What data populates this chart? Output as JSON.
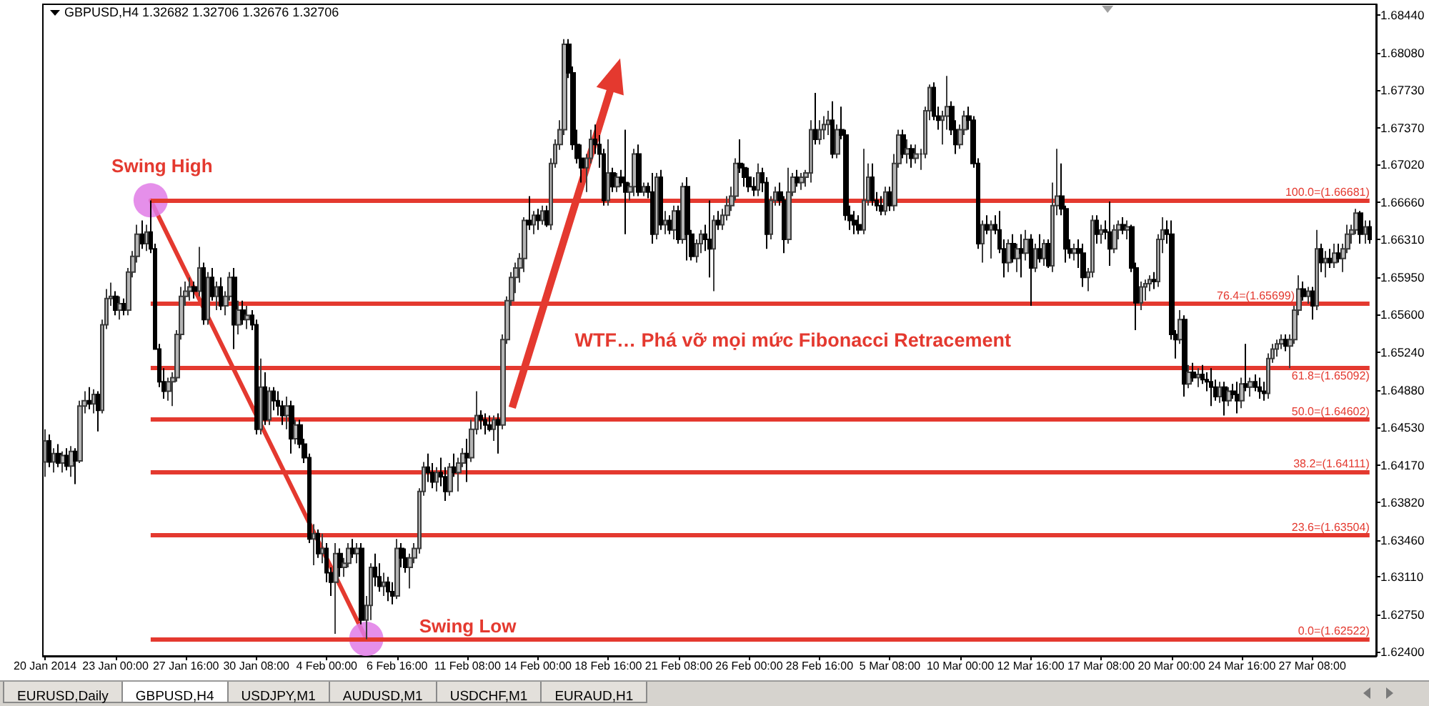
{
  "chart_data": {
    "type": "candlestick",
    "title": "GBPUSD,H4 1.32682 1.32706 1.32676 1.32706",
    "categories": [
      "20 Jan 2014",
      null,
      null,
      null,
      null,
      null,
      null,
      null,
      null,
      null,
      null,
      null,
      null,
      null,
      null,
      null,
      "23 Jan 00:00",
      null,
      null,
      null,
      null,
      null,
      null,
      null,
      null,
      null,
      null,
      null,
      null,
      null,
      null,
      null,
      "27 Jan 16:00",
      null,
      null,
      null,
      null,
      null,
      null,
      null,
      null,
      null,
      null,
      null,
      null,
      null,
      null,
      null,
      "30 Jan 08:00",
      null,
      null,
      null,
      null,
      null,
      null,
      null,
      null,
      null,
      null,
      null,
      null,
      null,
      null,
      null,
      "4 Feb 00:00",
      null,
      null,
      null,
      null,
      null,
      null,
      null,
      null,
      null,
      null,
      null,
      null,
      null,
      null,
      null,
      "6 Feb 16:00",
      null,
      null,
      null,
      null,
      null,
      null,
      null,
      null,
      null,
      null,
      null,
      null,
      null,
      null,
      null,
      "11 Feb 08:00",
      null,
      null,
      null,
      null,
      null,
      null,
      null,
      null,
      null,
      null,
      null,
      null,
      null,
      null,
      null,
      "14 Feb 00:00",
      null,
      null,
      null,
      null,
      null,
      null,
      null,
      null,
      null,
      null,
      null,
      null,
      null,
      null,
      null,
      "18 Feb 16:00",
      null,
      null,
      null,
      null,
      null,
      null,
      null,
      null,
      null,
      null,
      null,
      null,
      null,
      null,
      null,
      "21 Feb 08:00",
      null,
      null,
      null,
      null,
      null,
      null,
      null,
      null,
      null,
      null,
      null,
      null,
      null,
      null,
      null,
      "26 Feb 00:00",
      null,
      null,
      null,
      null,
      null,
      null,
      null,
      null,
      null,
      null,
      null,
      null,
      null,
      null,
      null,
      "28 Feb 16:00",
      null,
      null,
      null,
      null,
      null,
      null,
      null,
      null,
      null,
      null,
      null,
      null,
      null,
      null,
      null,
      "5 Mar 08:00",
      null,
      null,
      null,
      null,
      null,
      null,
      null,
      null,
      null,
      null,
      null,
      null,
      null,
      null,
      null,
      "10 Mar 00:00",
      null,
      null,
      null,
      null,
      null,
      null,
      null,
      null,
      null,
      null,
      null,
      null,
      null,
      null,
      null,
      "12 Mar 16:00",
      null,
      null,
      null,
      null,
      null,
      null,
      null,
      null,
      null,
      null,
      null,
      null,
      null,
      null,
      null,
      "17 Mar 08:00",
      null,
      null,
      null,
      null,
      null,
      null,
      null,
      null,
      null,
      null,
      null,
      null,
      null,
      null,
      null,
      "20 Mar 00:00",
      null,
      null,
      null,
      null,
      null,
      null,
      null,
      null,
      null,
      null,
      null,
      null,
      null,
      null,
      null,
      "24 Mar 16:00",
      null,
      null,
      null,
      null,
      null,
      null,
      null,
      null,
      null,
      null,
      null,
      null,
      null,
      null,
      null,
      "27 Mar 08:00",
      null,
      null,
      null,
      null,
      null,
      null,
      null,
      null,
      null,
      null,
      null,
      null,
      null
    ],
    "ohlc": [
      [
        1.642,
        1.6451,
        1.6406,
        1.644
      ],
      [
        1.644,
        1.6446,
        1.6415,
        1.642
      ],
      [
        1.642,
        1.6433,
        1.641,
        1.6428
      ],
      [
        1.6428,
        1.6437,
        1.6415,
        1.6419
      ],
      [
        1.6419,
        1.643,
        1.641,
        1.6426
      ],
      [
        1.6426,
        1.6433,
        1.6412,
        1.6416
      ],
      [
        1.6416,
        1.6435,
        1.6406,
        1.643
      ],
      [
        1.643,
        1.6433,
        1.6399,
        1.6421
      ],
      [
        1.6421,
        1.6478,
        1.6419,
        1.6473
      ],
      [
        1.6473,
        1.6487,
        1.6466,
        1.6478
      ],
      [
        1.6478,
        1.6491,
        1.647,
        1.6475
      ],
      [
        1.6475,
        1.6489,
        1.6466,
        1.6484
      ],
      [
        1.6484,
        1.6487,
        1.6449,
        1.6469
      ],
      [
        1.6469,
        1.6555,
        1.6466,
        1.655
      ],
      [
        1.655,
        1.6584,
        1.6546,
        1.6575
      ],
      [
        1.6575,
        1.659,
        1.6568,
        1.6577
      ],
      [
        1.6577,
        1.6582,
        1.6559,
        1.6564
      ],
      [
        1.6564,
        1.6577,
        1.6555,
        1.657
      ],
      [
        1.657,
        1.6575,
        1.6559,
        1.6564
      ],
      [
        1.6564,
        1.6604,
        1.6559,
        1.66
      ],
      [
        1.66,
        1.662,
        1.6595,
        1.6615
      ],
      [
        1.6615,
        1.6645,
        1.6609,
        1.6636
      ],
      [
        1.6636,
        1.6649,
        1.6622,
        1.6627
      ],
      [
        1.6627,
        1.6645,
        1.662,
        1.6638
      ],
      [
        1.6638,
        1.6668,
        1.6618,
        1.6622
      ],
      [
        1.6622,
        1.6627,
        1.6527,
        1.6527
      ],
      [
        1.6527,
        1.6532,
        1.6491,
        1.6496
      ],
      [
        1.6496,
        1.6509,
        1.648,
        1.6487
      ],
      [
        1.6487,
        1.65,
        1.6478,
        1.6496
      ],
      [
        1.6496,
        1.6505,
        1.6473,
        1.65
      ],
      [
        1.65,
        1.6545,
        1.6496,
        1.6541
      ],
      [
        1.6541,
        1.6586,
        1.6536,
        1.6577
      ],
      [
        1.6577,
        1.6591,
        1.6568,
        1.6582
      ],
      [
        1.6582,
        1.6595,
        1.6573,
        1.6586
      ],
      [
        1.6586,
        1.6591,
        1.6575,
        1.6582
      ],
      [
        1.6582,
        1.6624,
        1.6577,
        1.6604
      ],
      [
        1.6604,
        1.6609,
        1.655,
        1.6555
      ],
      [
        1.6555,
        1.66,
        1.655,
        1.6595
      ],
      [
        1.6595,
        1.6604,
        1.6573,
        1.6577
      ],
      [
        1.6577,
        1.6591,
        1.6564,
        1.6586
      ],
      [
        1.6586,
        1.6595,
        1.6564,
        1.6568
      ],
      [
        1.6568,
        1.6582,
        1.6559,
        1.6577
      ],
      [
        1.6577,
        1.66,
        1.6573,
        1.6595
      ],
      [
        1.6595,
        1.6604,
        1.6527,
        1.655
      ],
      [
        1.655,
        1.6573,
        1.6541,
        1.6564
      ],
      [
        1.6564,
        1.6573,
        1.655,
        1.6555
      ],
      [
        1.6555,
        1.6568,
        1.6546,
        1.6559
      ],
      [
        1.6559,
        1.6564,
        1.6545,
        1.655
      ],
      [
        1.655,
        1.6555,
        1.6446,
        1.6451
      ],
      [
        1.6451,
        1.6518,
        1.6446,
        1.6491
      ],
      [
        1.6491,
        1.6505,
        1.6455,
        1.646
      ],
      [
        1.646,
        1.6491,
        1.6455,
        1.6487
      ],
      [
        1.6487,
        1.6491,
        1.6469,
        1.6478
      ],
      [
        1.6478,
        1.6487,
        1.6464,
        1.6473
      ],
      [
        1.6473,
        1.6478,
        1.6455,
        1.6464
      ],
      [
        1.6464,
        1.6482,
        1.6451,
        1.6473
      ],
      [
        1.6473,
        1.6478,
        1.6428,
        1.6442
      ],
      [
        1.6442,
        1.646,
        1.6437,
        1.6455
      ],
      [
        1.6455,
        1.646,
        1.6433,
        1.6437
      ],
      [
        1.6437,
        1.6442,
        1.6419,
        1.6424
      ],
      [
        1.6424,
        1.6428,
        1.6343,
        1.6347
      ],
      [
        1.6347,
        1.6361,
        1.6322,
        1.6352
      ],
      [
        1.6352,
        1.6356,
        1.6329,
        1.6333
      ],
      [
        1.6333,
        1.6352,
        1.6324,
        1.6338
      ],
      [
        1.6338,
        1.6343,
        1.6306,
        1.6315
      ],
      [
        1.6315,
        1.632,
        1.6293,
        1.6306
      ],
      [
        1.6306,
        1.6343,
        1.6257,
        1.6333
      ],
      [
        1.6333,
        1.6338,
        1.6311,
        1.632
      ],
      [
        1.632,
        1.6329,
        1.6311,
        1.6324
      ],
      [
        1.6324,
        1.6343,
        1.632,
        1.6338
      ],
      [
        1.6338,
        1.6347,
        1.6329,
        1.6333
      ],
      [
        1.6333,
        1.6343,
        1.6324,
        1.6338
      ],
      [
        1.6338,
        1.6343,
        1.6266,
        1.627
      ],
      [
        1.627,
        1.6293,
        1.6252,
        1.6284
      ],
      [
        1.6284,
        1.6324,
        1.627,
        1.632
      ],
      [
        1.632,
        1.6333,
        1.6302,
        1.6311
      ],
      [
        1.6311,
        1.6324,
        1.6297,
        1.6302
      ],
      [
        1.6302,
        1.6315,
        1.6293,
        1.6306
      ],
      [
        1.6306,
        1.6311,
        1.6288,
        1.6297
      ],
      [
        1.6297,
        1.6306,
        1.6285,
        1.6293
      ],
      [
        1.6293,
        1.6347,
        1.629,
        1.6338
      ],
      [
        1.6338,
        1.6343,
        1.632,
        1.6329
      ],
      [
        1.6329,
        1.6338,
        1.6315,
        1.632
      ],
      [
        1.632,
        1.6333,
        1.63,
        1.6329
      ],
      [
        1.6329,
        1.6343,
        1.6324,
        1.6338
      ],
      [
        1.6338,
        1.6395,
        1.6333,
        1.6392
      ],
      [
        1.6392,
        1.642,
        1.6388,
        1.6415
      ],
      [
        1.6415,
        1.6428,
        1.6401,
        1.641
      ],
      [
        1.641,
        1.6419,
        1.6395,
        1.6401
      ],
      [
        1.6401,
        1.6415,
        1.6392,
        1.641
      ],
      [
        1.641,
        1.6424,
        1.6397,
        1.6406
      ],
      [
        1.6406,
        1.6415,
        1.6383,
        1.6392
      ],
      [
        1.6392,
        1.6419,
        1.6388,
        1.6415
      ],
      [
        1.6415,
        1.6428,
        1.6406,
        1.641
      ],
      [
        1.641,
        1.6424,
        1.6392,
        1.6419
      ],
      [
        1.6419,
        1.6433,
        1.6415,
        1.6428
      ],
      [
        1.6428,
        1.6442,
        1.6401,
        1.6424
      ],
      [
        1.6424,
        1.646,
        1.642,
        1.6451
      ],
      [
        1.6451,
        1.6487,
        1.6446,
        1.6464
      ],
      [
        1.6464,
        1.6469,
        1.6451,
        1.646
      ],
      [
        1.646,
        1.6466,
        1.6446,
        1.6455
      ],
      [
        1.6455,
        1.6464,
        1.6449,
        1.6451
      ],
      [
        1.6451,
        1.6464,
        1.644,
        1.646
      ],
      [
        1.646,
        1.6466,
        1.6428,
        1.6455
      ],
      [
        1.6455,
        1.6541,
        1.6451,
        1.6536
      ],
      [
        1.6536,
        1.6577,
        1.6532,
        1.6573
      ],
      [
        1.6573,
        1.66,
        1.6568,
        1.6595
      ],
      [
        1.6595,
        1.6609,
        1.658,
        1.6604
      ],
      [
        1.6604,
        1.6618,
        1.659,
        1.6613
      ],
      [
        1.6613,
        1.6652,
        1.66,
        1.6649
      ],
      [
        1.6649,
        1.6672,
        1.664,
        1.6645
      ],
      [
        1.6645,
        1.6658,
        1.6636,
        1.6654
      ],
      [
        1.6654,
        1.666,
        1.664,
        1.6649
      ],
      [
        1.6649,
        1.6663,
        1.6645,
        1.6658
      ],
      [
        1.6658,
        1.6663,
        1.6643,
        1.6645
      ],
      [
        1.6645,
        1.6708,
        1.664,
        1.6703
      ],
      [
        1.6703,
        1.6726,
        1.6699,
        1.6721
      ],
      [
        1.6721,
        1.6744,
        1.6716,
        1.6735
      ],
      [
        1.6735,
        1.6821,
        1.673,
        1.6816
      ],
      [
        1.6816,
        1.6821,
        1.6784,
        1.6789
      ],
      [
        1.6789,
        1.6795,
        1.6716,
        1.6721
      ],
      [
        1.6721,
        1.6735,
        1.6703,
        1.6708
      ],
      [
        1.6708,
        1.6721,
        1.6685,
        1.6699
      ],
      [
        1.6699,
        1.6712,
        1.6676,
        1.6708
      ],
      [
        1.6708,
        1.6735,
        1.6703,
        1.6726
      ],
      [
        1.6726,
        1.674,
        1.6712,
        1.6721
      ],
      [
        1.6721,
        1.673,
        1.6699,
        1.6712
      ],
      [
        1.6712,
        1.6717,
        1.6663,
        1.6668
      ],
      [
        1.6668,
        1.6726,
        1.6663,
        1.6694
      ],
      [
        1.6694,
        1.6699,
        1.6676,
        1.6681
      ],
      [
        1.6681,
        1.6694,
        1.6676,
        1.669
      ],
      [
        1.669,
        1.6697,
        1.6681,
        1.6685
      ],
      [
        1.6685,
        1.6735,
        1.6636,
        1.6676
      ],
      [
        1.6676,
        1.6685,
        1.6668,
        1.6681
      ],
      [
        1.6681,
        1.6717,
        1.6672,
        1.6712
      ],
      [
        1.6712,
        1.6721,
        1.6672,
        1.6676
      ],
      [
        1.6676,
        1.6685,
        1.6672,
        1.6681
      ],
      [
        1.6681,
        1.6685,
        1.667,
        1.6676
      ],
      [
        1.6676,
        1.6694,
        1.6627,
        1.6636
      ],
      [
        1.6636,
        1.6694,
        1.6631,
        1.669
      ],
      [
        1.669,
        1.6697,
        1.664,
        1.6645
      ],
      [
        1.6645,
        1.6658,
        1.6636,
        1.6649
      ],
      [
        1.6649,
        1.6654,
        1.6636,
        1.664
      ],
      [
        1.664,
        1.6663,
        1.6631,
        1.6658
      ],
      [
        1.6658,
        1.6663,
        1.6627,
        1.6631
      ],
      [
        1.6631,
        1.6685,
        1.6627,
        1.6681
      ],
      [
        1.6681,
        1.669,
        1.6611,
        1.6636
      ],
      [
        1.6636,
        1.664,
        1.6611,
        1.6615
      ],
      [
        1.6615,
        1.6631,
        1.6609,
        1.6627
      ],
      [
        1.6627,
        1.664,
        1.6618,
        1.6636
      ],
      [
        1.6636,
        1.6645,
        1.662,
        1.6631
      ],
      [
        1.6631,
        1.6668,
        1.6595,
        1.6622
      ],
      [
        1.6622,
        1.6654,
        1.6582,
        1.6649
      ],
      [
        1.6649,
        1.6658,
        1.664,
        1.6645
      ],
      [
        1.6645,
        1.666,
        1.664,
        1.6654
      ],
      [
        1.6654,
        1.6672,
        1.6649,
        1.6663
      ],
      [
        1.6663,
        1.6681,
        1.6658,
        1.6672
      ],
      [
        1.6672,
        1.6708,
        1.6668,
        1.6703
      ],
      [
        1.6703,
        1.6726,
        1.6694,
        1.6699
      ],
      [
        1.6699,
        1.6703,
        1.6681,
        1.669
      ],
      [
        1.669,
        1.6699,
        1.6676,
        1.6681
      ],
      [
        1.6681,
        1.669,
        1.6672,
        1.6678
      ],
      [
        1.6678,
        1.6703,
        1.6672,
        1.6694
      ],
      [
        1.6694,
        1.6699,
        1.6676,
        1.6685
      ],
      [
        1.6685,
        1.669,
        1.6622,
        1.6636
      ],
      [
        1.6636,
        1.6672,
        1.6631,
        1.6668
      ],
      [
        1.6668,
        1.6681,
        1.6663,
        1.6676
      ],
      [
        1.6676,
        1.6685,
        1.6663,
        1.6668
      ],
      [
        1.6668,
        1.6672,
        1.6618,
        1.6631
      ],
      [
        1.6631,
        1.6699,
        1.6627,
        1.6676
      ],
      [
        1.6676,
        1.6694,
        1.6672,
        1.669
      ],
      [
        1.669,
        1.6697,
        1.6681,
        1.6685
      ],
      [
        1.6685,
        1.6694,
        1.6678,
        1.669
      ],
      [
        1.669,
        1.6697,
        1.6681,
        1.6694
      ],
      [
        1.6694,
        1.6744,
        1.6685,
        1.6735
      ],
      [
        1.6735,
        1.677,
        1.6721,
        1.6726
      ],
      [
        1.6726,
        1.6744,
        1.6721,
        1.6735
      ],
      [
        1.6735,
        1.6748,
        1.6726,
        1.674
      ],
      [
        1.674,
        1.6753,
        1.673,
        1.6744
      ],
      [
        1.6744,
        1.6762,
        1.6708,
        1.6712
      ],
      [
        1.6712,
        1.674,
        1.6708,
        1.6735
      ],
      [
        1.6735,
        1.6757,
        1.6726,
        1.673
      ],
      [
        1.673,
        1.6735,
        1.6649,
        1.6654
      ],
      [
        1.6654,
        1.6663,
        1.664,
        1.6649
      ],
      [
        1.6649,
        1.6658,
        1.6636,
        1.6645
      ],
      [
        1.6645,
        1.6654,
        1.6636,
        1.664
      ],
      [
        1.664,
        1.6717,
        1.6636,
        1.6668
      ],
      [
        1.6668,
        1.6703,
        1.6663,
        1.669
      ],
      [
        1.669,
        1.6703,
        1.6663,
        1.6668
      ],
      [
        1.6668,
        1.6676,
        1.6658,
        1.6663
      ],
      [
        1.6663,
        1.6672,
        1.6654,
        1.6658
      ],
      [
        1.6658,
        1.6681,
        1.6654,
        1.6676
      ],
      [
        1.6676,
        1.6681,
        1.6658,
        1.6663
      ],
      [
        1.6663,
        1.6712,
        1.6658,
        1.6703
      ],
      [
        1.6703,
        1.6735,
        1.6699,
        1.673
      ],
      [
        1.673,
        1.6735,
        1.6708,
        1.6712
      ],
      [
        1.6712,
        1.6726,
        1.6703,
        1.6717
      ],
      [
        1.6717,
        1.6721,
        1.6699,
        1.6708
      ],
      [
        1.6708,
        1.6721,
        1.6703,
        1.6712
      ],
      [
        1.6712,
        1.6717,
        1.6697,
        1.6712
      ],
      [
        1.6712,
        1.6757,
        1.6708,
        1.6753
      ],
      [
        1.6753,
        1.6778,
        1.6744,
        1.6775
      ],
      [
        1.6775,
        1.678,
        1.6744,
        1.6748
      ],
      [
        1.6748,
        1.6757,
        1.6735,
        1.6744
      ],
      [
        1.6744,
        1.6753,
        1.6721,
        1.6748
      ],
      [
        1.6748,
        1.6786,
        1.6735,
        1.6757
      ],
      [
        1.6757,
        1.6762,
        1.673,
        1.6735
      ],
      [
        1.6735,
        1.6744,
        1.6712,
        1.6721
      ],
      [
        1.6721,
        1.674,
        1.6717,
        1.6735
      ],
      [
        1.6735,
        1.6753,
        1.673,
        1.6748
      ],
      [
        1.6748,
        1.6757,
        1.6735,
        1.6744
      ],
      [
        1.6744,
        1.6748,
        1.6699,
        1.6703
      ],
      [
        1.6703,
        1.6708,
        1.6622,
        1.6627
      ],
      [
        1.6627,
        1.6649,
        1.6609,
        1.6645
      ],
      [
        1.6645,
        1.6654,
        1.6636,
        1.664
      ],
      [
        1.664,
        1.6649,
        1.6613,
        1.6645
      ],
      [
        1.6645,
        1.6654,
        1.6636,
        1.664
      ],
      [
        1.664,
        1.6658,
        1.6618,
        1.6622
      ],
      [
        1.6622,
        1.6631,
        1.6595,
        1.6609
      ],
      [
        1.6609,
        1.6631,
        1.66,
        1.6627
      ],
      [
        1.6627,
        1.6636,
        1.6609,
        1.6613
      ],
      [
        1.6613,
        1.6627,
        1.66,
        1.6622
      ],
      [
        1.6622,
        1.6636,
        1.6595,
        1.6618
      ],
      [
        1.6618,
        1.664,
        1.6611,
        1.6631
      ],
      [
        1.6631,
        1.6636,
        1.6568,
        1.6604
      ],
      [
        1.6604,
        1.6627,
        1.66,
        1.6622
      ],
      [
        1.6622,
        1.6636,
        1.6609,
        1.6613
      ],
      [
        1.6613,
        1.6631,
        1.6606,
        1.6627
      ],
      [
        1.6627,
        1.6631,
        1.6604,
        1.6606
      ],
      [
        1.6606,
        1.6685,
        1.66,
        1.6663
      ],
      [
        1.6663,
        1.6717,
        1.6654,
        1.6672
      ],
      [
        1.6672,
        1.6703,
        1.6654,
        1.666
      ],
      [
        1.666,
        1.6663,
        1.6609,
        1.6622
      ],
      [
        1.6622,
        1.6631,
        1.6613,
        1.6618
      ],
      [
        1.6618,
        1.6627,
        1.6611,
        1.6622
      ],
      [
        1.6622,
        1.6631,
        1.6604,
        1.6618
      ],
      [
        1.6618,
        1.6627,
        1.6586,
        1.6595
      ],
      [
        1.6595,
        1.6604,
        1.6582,
        1.66
      ],
      [
        1.66,
        1.6654,
        1.6595,
        1.6649
      ],
      [
        1.6649,
        1.6654,
        1.6627,
        1.6636
      ],
      [
        1.6636,
        1.6645,
        1.6627,
        1.664
      ],
      [
        1.664,
        1.6649,
        1.6631,
        1.6638
      ],
      [
        1.6638,
        1.6667,
        1.6606,
        1.6622
      ],
      [
        1.6622,
        1.6645,
        1.6618,
        1.664
      ],
      [
        1.664,
        1.6649,
        1.6631,
        1.6645
      ],
      [
        1.6645,
        1.6652,
        1.6636,
        1.664
      ],
      [
        1.664,
        1.6649,
        1.6631,
        1.6643
      ],
      [
        1.6643,
        1.6645,
        1.66,
        1.6604
      ],
      [
        1.6604,
        1.6609,
        1.6545,
        1.6571
      ],
      [
        1.6571,
        1.6591,
        1.6564,
        1.6586
      ],
      [
        1.6586,
        1.6593,
        1.6573,
        1.6589
      ],
      [
        1.6589,
        1.6597,
        1.6582,
        1.6593
      ],
      [
        1.6593,
        1.66,
        1.6584,
        1.6591
      ],
      [
        1.6591,
        1.6636,
        1.6586,
        1.6631
      ],
      [
        1.6631,
        1.6652,
        1.6618,
        1.664
      ],
      [
        1.664,
        1.6649,
        1.6627,
        1.6636
      ],
      [
        1.6636,
        1.6649,
        1.6536,
        1.6541
      ],
      [
        1.6541,
        1.6545,
        1.6518,
        1.6536
      ],
      [
        1.6536,
        1.6564,
        1.6532,
        1.6555
      ],
      [
        1.6555,
        1.6559,
        1.6482,
        1.6494
      ],
      [
        1.6494,
        1.6512,
        1.649,
        1.6505
      ],
      [
        1.6505,
        1.6514,
        1.6496,
        1.65
      ],
      [
        1.65,
        1.6509,
        1.6491,
        1.6503
      ],
      [
        1.6503,
        1.6512,
        1.6494,
        1.6498
      ],
      [
        1.6498,
        1.6505,
        1.6487,
        1.6496
      ],
      [
        1.6496,
        1.6509,
        1.6473,
        1.6491
      ],
      [
        1.6491,
        1.6498,
        1.6478,
        1.6482
      ],
      [
        1.6482,
        1.6496,
        1.6476,
        1.6491
      ],
      [
        1.6491,
        1.6496,
        1.6464,
        1.6478
      ],
      [
        1.6478,
        1.6491,
        1.6473,
        1.6487
      ],
      [
        1.6487,
        1.6494,
        1.648,
        1.6484
      ],
      [
        1.6484,
        1.6496,
        1.6466,
        1.6478
      ],
      [
        1.6478,
        1.65,
        1.6471,
        1.6494
      ],
      [
        1.6494,
        1.6532,
        1.6487,
        1.6491
      ],
      [
        1.6491,
        1.65,
        1.6482,
        1.6496
      ],
      [
        1.6496,
        1.6503,
        1.6487,
        1.6491
      ],
      [
        1.6491,
        1.65,
        1.648,
        1.6487
      ],
      [
        1.6487,
        1.6496,
        1.6478,
        1.6485
      ],
      [
        1.6485,
        1.6523,
        1.648,
        1.6518
      ],
      [
        1.6518,
        1.6532,
        1.6514,
        1.6527
      ],
      [
        1.6527,
        1.6536,
        1.652,
        1.6532
      ],
      [
        1.6532,
        1.6541,
        1.6527,
        1.6536
      ],
      [
        1.6536,
        1.6541,
        1.6525,
        1.653
      ],
      [
        1.653,
        1.6541,
        1.6509,
        1.6536
      ],
      [
        1.6536,
        1.6568,
        1.6532,
        1.6564
      ],
      [
        1.6564,
        1.6597,
        1.6559,
        1.6584
      ],
      [
        1.6584,
        1.6591,
        1.6573,
        1.6577
      ],
      [
        1.6577,
        1.6586,
        1.657,
        1.6582
      ],
      [
        1.6582,
        1.6586,
        1.6555,
        1.6568
      ],
      [
        1.6568,
        1.664,
        1.6564,
        1.6622
      ],
      [
        1.6622,
        1.6627,
        1.66,
        1.6609
      ],
      [
        1.6609,
        1.662,
        1.6595,
        1.6613
      ],
      [
        1.6613,
        1.6622,
        1.6604,
        1.6609
      ],
      [
        1.6609,
        1.6627,
        1.6604,
        1.6618
      ],
      [
        1.6618,
        1.6627,
        1.6609,
        1.6613
      ],
      [
        1.6613,
        1.6627,
        1.66,
        1.6622
      ],
      [
        1.6622,
        1.6645,
        1.6618,
        1.6636
      ],
      [
        1.6636,
        1.6645,
        1.6627,
        1.664
      ],
      [
        1.664,
        1.666,
        1.6636,
        1.6656
      ],
      [
        1.6656,
        1.6658,
        1.6627,
        1.6636
      ],
      [
        1.6636,
        1.6649,
        1.6627,
        1.6643
      ],
      [
        1.6643,
        1.6649,
        1.6627,
        1.6631
      ]
    ],
    "series": [
      {
        "type": "line",
        "color": "#e4392f",
        "marker": "circle",
        "values": [
          null,
          null,
          null,
          null,
          null,
          null,
          null,
          null,
          null,
          null,
          null,
          null,
          null,
          null,
          null,
          null,
          null,
          null,
          null,
          null,
          null,
          null,
          null,
          null,
          1.66681,
          null,
          null,
          null,
          null,
          null,
          null,
          null,
          null,
          null,
          null,
          null,
          null,
          null,
          null,
          null,
          null,
          null,
          null,
          null,
          null,
          null,
          null,
          null,
          null,
          null,
          null,
          null,
          null,
          null,
          null,
          null,
          null,
          null,
          null,
          null,
          null,
          null,
          null,
          null,
          null,
          null,
          null,
          null,
          null,
          null,
          null,
          null,
          null,
          1.62522,
          null,
          null,
          null,
          null,
          null,
          null,
          null,
          null,
          null,
          null,
          null,
          null,
          null,
          null,
          null,
          null,
          null,
          null,
          null,
          null,
          null,
          null,
          null,
          null,
          null,
          null,
          null,
          null,
          null,
          null,
          null,
          null,
          null,
          null,
          null,
          null,
          null,
          null,
          null,
          null,
          null,
          null,
          null,
          null,
          null,
          null,
          null,
          null,
          null,
          null,
          null,
          null,
          null,
          null,
          null,
          null,
          null,
          null,
          null,
          null,
          null,
          null,
          null,
          null,
          null,
          null,
          null,
          null,
          null,
          null,
          null,
          null,
          null,
          null,
          null,
          null,
          null,
          null,
          null,
          null,
          null,
          null,
          null,
          null,
          null,
          null,
          null,
          null,
          null,
          null,
          null,
          null,
          null,
          null,
          null,
          null,
          null,
          null,
          null,
          null,
          null,
          null,
          null,
          null,
          null,
          null,
          null,
          null,
          null,
          null,
          null,
          null,
          null,
          null,
          null,
          null,
          null,
          null,
          null,
          null,
          null,
          null,
          null,
          null,
          null,
          null,
          null,
          null,
          null,
          null,
          null,
          null,
          null,
          null,
          null,
          null,
          null,
          null,
          null,
          null,
          null,
          null,
          null,
          null,
          null,
          null,
          null,
          null,
          null,
          null,
          null,
          null,
          null,
          null,
          null,
          null,
          null,
          null,
          null,
          null,
          null,
          null,
          null,
          null,
          null,
          null,
          null,
          null,
          null,
          null,
          null,
          null,
          null,
          null,
          null,
          null,
          null,
          null,
          null,
          null,
          null,
          null,
          null,
          null,
          null,
          null,
          null,
          null,
          null,
          null,
          null,
          null,
          null,
          null,
          null,
          null,
          null,
          null,
          null,
          null,
          null,
          null,
          null,
          null,
          null,
          null,
          null,
          null,
          null,
          null,
          null,
          null,
          null,
          null,
          null,
          null,
          null,
          null,
          null,
          null,
          null,
          null,
          null,
          null,
          null,
          null,
          null,
          null
        ]
      }
    ],
    "ylim": [
      1.6236,
      1.6854
    ],
    "yticks": [
      {
        "value": 1.624,
        "label": "1.62400"
      },
      {
        "value": 1.6275,
        "label": "1.62750"
      },
      {
        "value": 1.6311,
        "label": "1.63110"
      },
      {
        "value": 1.6346,
        "label": "1.63460"
      },
      {
        "value": 1.6382,
        "label": "1.63820"
      },
      {
        "value": 1.6417,
        "label": "1.64170"
      },
      {
        "value": 1.6453,
        "label": "1.64530"
      },
      {
        "value": 1.6488,
        "label": "1.64880"
      },
      {
        "value": 1.6524,
        "label": "1.65240"
      },
      {
        "value": 1.656,
        "label": "1.65600"
      },
      {
        "value": 1.6595,
        "label": "1.65950"
      },
      {
        "value": 1.6631,
        "label": "1.66310"
      },
      {
        "value": 1.6666,
        "label": "1.66660"
      },
      {
        "value": 1.6702,
        "label": "1.67020"
      },
      {
        "value": 1.6737,
        "label": "1.67370"
      },
      {
        "value": 1.6773,
        "label": "1.67730"
      },
      {
        "value": 1.6808,
        "label": "1.68080"
      },
      {
        "value": 1.6844,
        "label": "1.68440"
      }
    ],
    "grid": false,
    "ref_lines": [
      {
        "axis": "y",
        "value": 1.66681,
        "label": "100.0=(1.66681)",
        "color": "#e4392f"
      },
      {
        "axis": "y",
        "value": 1.65699,
        "label": "76.4=(1.65699)",
        "color": "#e4392f"
      },
      {
        "axis": "y",
        "value": 1.65092,
        "label": "61.8=(1.65092)",
        "color": "#e4392f"
      },
      {
        "axis": "y",
        "value": 1.64602,
        "label": "50.0=(1.64602)",
        "color": "#e4392f"
      },
      {
        "axis": "y",
        "value": 1.64111,
        "label": "38.2=(1.64111)",
        "color": "#e4392f"
      },
      {
        "axis": "y",
        "value": 1.63504,
        "label": "23.6=(1.63504)",
        "color": "#e4392f"
      },
      {
        "axis": "y",
        "value": 1.62522,
        "label": "0.0=(1.62522)",
        "color": "#e4392f"
      }
    ],
    "annotations": [
      "Swing High",
      "Swing Low",
      "WTF… Phá vỡ mọi mức Fibonacci Retracement",
      "EURUSD,Daily",
      "GBPUSD,H4",
      "USDJPY,M1",
      "AUDUSD,M1",
      "USDCHF,M1",
      "EURAUD,H1"
    ]
  }
}
